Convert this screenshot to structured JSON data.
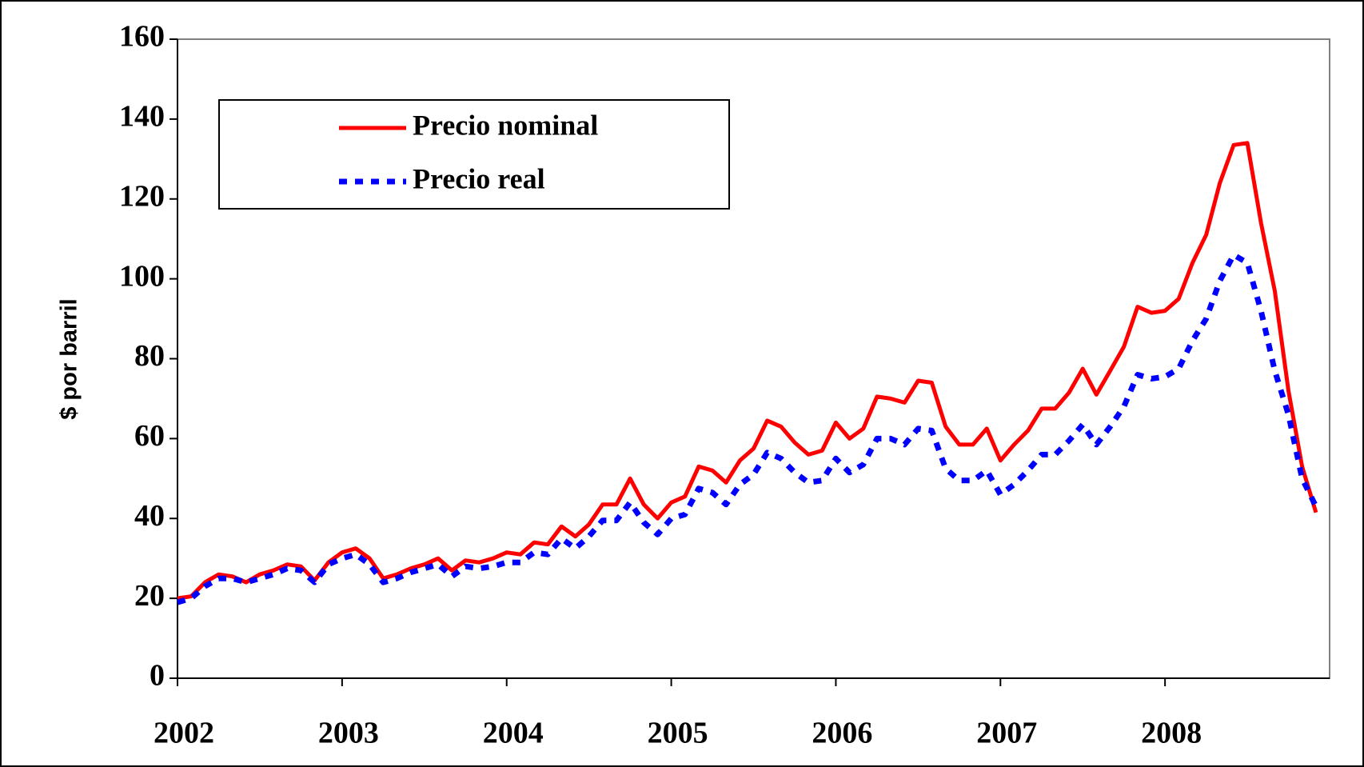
{
  "chart_data": {
    "type": "line",
    "y_label": "$ por barril",
    "xlim": [
      2002,
      2009
    ],
    "xticks": [
      2002,
      2003,
      2004,
      2005,
      2006,
      2007,
      2008
    ],
    "ylim": [
      0,
      160
    ],
    "yticks": [
      0,
      20,
      40,
      60,
      80,
      100,
      120,
      140,
      160
    ],
    "legend": "upper left",
    "x": [
      2002.0,
      2002.083,
      2002.167,
      2002.25,
      2002.333,
      2002.417,
      2002.5,
      2002.583,
      2002.667,
      2002.75,
      2002.833,
      2002.917,
      2003.0,
      2003.083,
      2003.167,
      2003.25,
      2003.333,
      2003.417,
      2003.5,
      2003.583,
      2003.667,
      2003.75,
      2003.833,
      2003.917,
      2004.0,
      2004.083,
      2004.167,
      2004.25,
      2004.333,
      2004.417,
      2004.5,
      2004.583,
      2004.667,
      2004.75,
      2004.833,
      2004.917,
      2005.0,
      2005.083,
      2005.167,
      2005.25,
      2005.333,
      2005.417,
      2005.5,
      2005.583,
      2005.667,
      2005.75,
      2005.833,
      2005.917,
      2006.0,
      2006.083,
      2006.167,
      2006.25,
      2006.333,
      2006.417,
      2006.5,
      2006.583,
      2006.667,
      2006.75,
      2006.833,
      2006.917,
      2007.0,
      2007.083,
      2007.167,
      2007.25,
      2007.333,
      2007.417,
      2007.5,
      2007.583,
      2007.667,
      2007.75,
      2007.833,
      2007.917,
      2008.0,
      2008.083,
      2008.167,
      2008.25,
      2008.333,
      2008.417,
      2008.5,
      2008.583,
      2008.667,
      2008.75,
      2008.833,
      2008.917
    ],
    "series": [
      {
        "name": "Precio nominal",
        "color": "#ff0000",
        "dash": false,
        "values": [
          20,
          20.5,
          24,
          26,
          25.5,
          24,
          26,
          27,
          28.5,
          28,
          24.5,
          29,
          31.5,
          32.5,
          30,
          25,
          26,
          27.5,
          28.5,
          30,
          27,
          29.5,
          29,
          30,
          31.5,
          31,
          34,
          33.5,
          38,
          35.5,
          38.5,
          43.5,
          43.5,
          50,
          43.5,
          40,
          44,
          45.5,
          53,
          52,
          49,
          54.5,
          57.5,
          64.5,
          63,
          59,
          56,
          57,
          64,
          60,
          62.5,
          70.5,
          70,
          69,
          74.5,
          74,
          63,
          58.5,
          58.5,
          62.5,
          54.5,
          58.5,
          62,
          67.5,
          67.5,
          71.5,
          77.5,
          71,
          77,
          83,
          93,
          91.5,
          92,
          95,
          104,
          111,
          124,
          133.5,
          134,
          114,
          97,
          72,
          53,
          41.5
        ]
      },
      {
        "name": "Precio real",
        "color": "#0000ff",
        "dash": true,
        "values": [
          19,
          20,
          23,
          25,
          25,
          24,
          25,
          26,
          27.5,
          27,
          24,
          28.5,
          30,
          31,
          28.5,
          24,
          25,
          26.5,
          27.5,
          28.5,
          25.5,
          28,
          27.5,
          28,
          29,
          29,
          31.5,
          31,
          35,
          32.5,
          35.5,
          39.5,
          39.5,
          44,
          39,
          36,
          40,
          41,
          47.5,
          46.5,
          43.5,
          48.5,
          51,
          56.5,
          55,
          51.5,
          49,
          49.5,
          55,
          51.5,
          53.5,
          60,
          60,
          58.5,
          62.5,
          62,
          52.5,
          49.5,
          49.5,
          52,
          46,
          48.5,
          52,
          56,
          56,
          59.5,
          63.5,
          58.5,
          63,
          68,
          76,
          75,
          75.5,
          77.5,
          84.5,
          90,
          99.5,
          106,
          104,
          92,
          77,
          66,
          50,
          43
        ]
      }
    ]
  }
}
